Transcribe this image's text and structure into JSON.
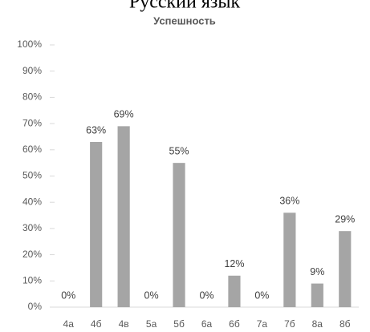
{
  "heading": "Русский язык",
  "chart_data": {
    "type": "bar",
    "title": "Успешность",
    "categories": [
      "4а",
      "4б",
      "4в",
      "5а",
      "5б",
      "6а",
      "6б",
      "7а",
      "7б",
      "8а",
      "8б"
    ],
    "values": [
      0,
      63,
      69,
      0,
      55,
      0,
      12,
      0,
      36,
      9,
      29
    ],
    "value_labels": [
      "0%",
      "63%",
      "69%",
      "0%",
      "55%",
      "0%",
      "12%",
      "0%",
      "36%",
      "9%",
      "29%"
    ],
    "color": "#a5a5a5",
    "ylim": [
      0,
      100
    ],
    "yticks": [
      {
        "value": 0,
        "label": "0%"
      },
      {
        "value": 10,
        "label": "10%"
      },
      {
        "value": 20,
        "label": "20%"
      },
      {
        "value": 30,
        "label": "30%"
      },
      {
        "value": 40,
        "label": "40%"
      },
      {
        "value": 50,
        "label": "50%"
      },
      {
        "value": 60,
        "label": "60%"
      },
      {
        "value": 70,
        "label": "70%"
      },
      {
        "value": 80,
        "label": "80%"
      },
      {
        "value": 90,
        "label": "90%"
      },
      {
        "value": 100,
        "label": "100%"
      }
    ],
    "grid": false
  }
}
